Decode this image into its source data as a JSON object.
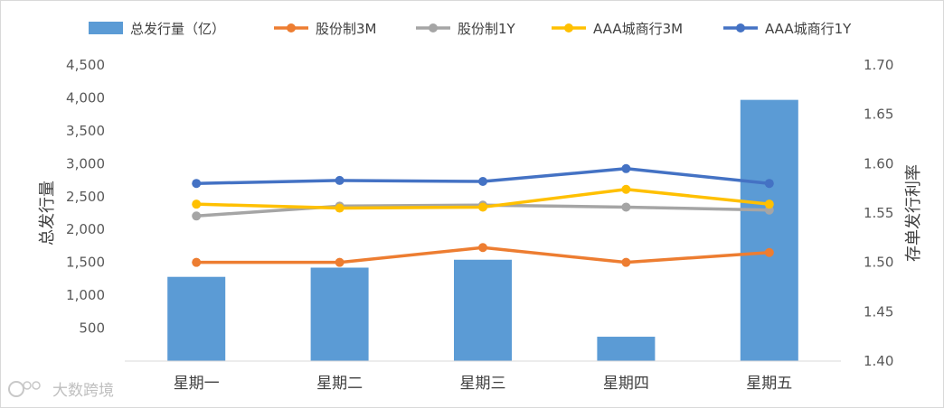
{
  "chart_data": {
    "type": "bar+line",
    "categories": [
      "星期一",
      "星期二",
      "星期三",
      "星期四",
      "星期五"
    ],
    "bar_series": {
      "name": "总发行量（亿）",
      "axis": "left",
      "values": [
        1280,
        1420,
        1540,
        370,
        3970
      ],
      "color": "#5b9bd5"
    },
    "line_series": [
      {
        "name": "股份制3M",
        "axis": "right",
        "values": [
          1.5,
          1.5,
          1.515,
          1.5,
          1.51
        ],
        "color": "#ed7d31"
      },
      {
        "name": "股份制1Y",
        "axis": "right",
        "values": [
          1.547,
          1.557,
          1.558,
          1.556,
          1.553
        ],
        "color": "#a5a5a5"
      },
      {
        "name": "AAA城商行3M",
        "axis": "right",
        "values": [
          1.559,
          1.555,
          1.556,
          1.574,
          1.559
        ],
        "color": "#ffc000"
      },
      {
        "name": "AAA城商行1Y",
        "axis": "right",
        "values": [
          1.58,
          1.583,
          1.582,
          1.595,
          1.58
        ],
        "color": "#4472c4"
      }
    ],
    "y_left": {
      "label": "总发行量",
      "min": 0,
      "max": 4500,
      "step": 500,
      "tick_labels": [
        "",
        "500",
        "1,000",
        "1,500",
        "2,000",
        "2,500",
        "3,000",
        "3,500",
        "4,000",
        "4,500"
      ]
    },
    "y_right": {
      "label": "存单发行利率",
      "min": 1.4,
      "max": 1.7,
      "step": 0.05,
      "tick_labels": [
        "1.40",
        "1.45",
        "1.50",
        "1.55",
        "1.60",
        "1.65",
        "1.70"
      ]
    },
    "legend_position": "top",
    "grid": false
  },
  "watermark": {
    "text": "大数跨境"
  }
}
